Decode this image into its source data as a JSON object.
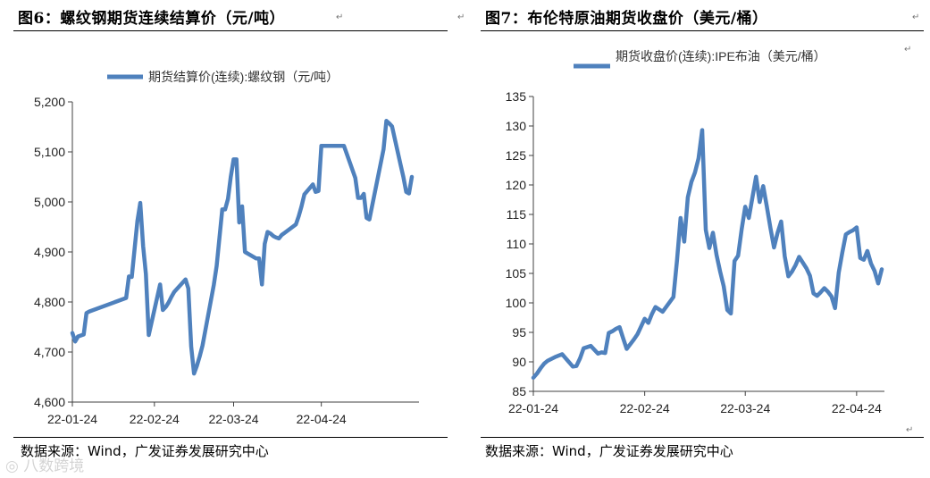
{
  "left_panel": {
    "title": "图6：螺纹钢期货连续结算价（元/吨）",
    "source": "数据来源：Wind，广发证券发展研究中心"
  },
  "right_panel": {
    "title": "图7：布伦特原油期货收盘价（美元/桶）",
    "source": "数据来源：Wind，广发证券发展研究中心"
  },
  "watermark": "八数跨境",
  "colors": {
    "line": "#4f81bd",
    "axis": "#404040"
  },
  "chart_data": [
    {
      "type": "line",
      "series": [
        {
          "name": "期货结算价(连续):螺纹钢（元/吨）",
          "x": [
            0,
            1,
            2,
            4,
            5,
            6,
            19,
            20,
            21,
            23,
            24,
            25,
            26,
            27,
            31,
            32,
            33,
            34,
            35,
            36,
            40,
            41,
            42,
            43,
            44,
            45,
            46,
            50,
            51,
            53,
            54,
            55,
            56,
            57,
            58,
            59,
            60,
            61,
            65,
            66,
            67,
            68,
            69,
            70,
            71,
            72,
            73,
            74,
            75,
            79,
            80,
            81,
            82,
            85,
            86,
            87,
            88,
            89,
            93,
            94,
            95,
            96,
            100,
            101,
            102,
            103,
            104,
            105,
            110,
            111,
            112,
            113,
            116,
            117,
            118,
            119,
            120
          ],
          "values": [
            4738,
            4721,
            4731,
            4735,
            4778,
            4781,
            4808,
            4851,
            4850,
            4962,
            4998,
            4912,
            4856,
            4734,
            4835,
            4784,
            4790,
            4799,
            4810,
            4820,
            4845,
            4827,
            4711,
            4657,
            4672,
            4691,
            4713,
            4834,
            4872,
            4985,
            4985,
            5006,
            5050,
            5085,
            5085,
            4959,
            4991,
            4900,
            4887,
            4887,
            4835,
            4916,
            4940,
            4937,
            4932,
            4929,
            4927,
            4934,
            4938,
            4955,
            4971,
            4991,
            5015,
            5035,
            5020,
            5022,
            5112,
            5112,
            5112,
            5112,
            5112,
            5112,
            5048,
            5008,
            5008,
            5016,
            4968,
            4965,
            5105,
            5162,
            5157,
            5151,
            5075,
            5050,
            5020,
            5017,
            5050
          ]
        }
      ],
      "x_ticks": [
        {
          "x": 0,
          "label": "22-01-24"
        },
        {
          "x": 29,
          "label": "22-02-24"
        },
        {
          "x": 57,
          "label": "22-03-24"
        },
        {
          "x": 88,
          "label": "22-04-24"
        }
      ],
      "x_range": [
        0,
        120
      ],
      "ylim": [
        4600,
        5200
      ],
      "y_ticks": [
        4600,
        4700,
        4800,
        4900,
        5000,
        5100,
        5200
      ],
      "y_tick_labels": [
        "4,600",
        "4,700",
        "4,800",
        "4,900",
        "5,000",
        "5,100",
        "5,200"
      ],
      "grid": false,
      "legend": "top-left"
    },
    {
      "type": "line",
      "series": [
        {
          "name": "期货收盘价(连续):IPE布油（美元/桶）",
          "x": [
            0,
            1,
            2,
            3,
            4,
            5,
            6,
            8,
            11,
            12,
            13,
            14,
            16,
            18,
            19,
            20,
            21,
            22,
            23,
            24,
            25,
            26,
            28,
            29,
            30,
            31,
            32,
            33,
            34,
            36,
            39,
            40,
            41,
            42,
            43,
            44,
            45,
            46,
            47,
            48,
            49,
            50,
            51,
            52,
            53,
            54,
            55,
            56,
            57,
            58,
            59,
            60,
            62,
            63,
            64,
            65,
            66,
            67,
            68,
            69,
            70,
            71,
            72,
            73,
            74,
            76,
            77,
            78,
            79,
            80,
            81,
            82,
            83,
            84,
            85,
            86,
            87,
            88,
            89,
            90,
            91,
            92,
            93,
            94,
            95,
            96,
            97
          ],
          "values": [
            87.3,
            88.0,
            88.9,
            89.7,
            90.2,
            90.5,
            90.8,
            91.3,
            89.2,
            89.3,
            90.6,
            92.3,
            92.7,
            91.4,
            91.6,
            91.5,
            94.9,
            95.2,
            95.6,
            95.9,
            94.0,
            92.2,
            93.8,
            94.7,
            96.0,
            97.3,
            96.6,
            98.1,
            99.3,
            98.5,
            101.0,
            107.2,
            114.4,
            110.4,
            117.9,
            120.5,
            122.1,
            124.5,
            129.3,
            112.4,
            109.3,
            111.9,
            108.1,
            105.3,
            102.8,
            98.8,
            98.2,
            107.1,
            108.0,
            112.5,
            116.3,
            114.4,
            121.4,
            117.1,
            119.8,
            116.4,
            112.7,
            109.4,
            111.9,
            113.8,
            107.9,
            104.5,
            105.3,
            106.4,
            107.8,
            105.9,
            104.6,
            101.6,
            101.2,
            101.8,
            102.5,
            101.9,
            101.1,
            99.1,
            105.1,
            108.5,
            111.6,
            112.0,
            112.3,
            112.8,
            107.6,
            107.3,
            108.8,
            106.7,
            105.4,
            103.3,
            105.7
          ]
        }
      ],
      "x_ticks": [
        {
          "x": 0,
          "label": "22-01-24"
        },
        {
          "x": 31,
          "label": "22-02-24"
        },
        {
          "x": 59,
          "label": "22-03-24"
        },
        {
          "x": 90,
          "label": "22-04-24"
        }
      ],
      "x_range": [
        0,
        97
      ],
      "ylim": [
        85,
        135
      ],
      "y_ticks": [
        85,
        90,
        95,
        100,
        105,
        110,
        115,
        120,
        125,
        130,
        135
      ],
      "y_tick_labels": [
        "85",
        "90",
        "95",
        "100",
        "105",
        "110",
        "115",
        "120",
        "125",
        "130",
        "135"
      ],
      "grid": false,
      "legend": "top-center"
    }
  ]
}
